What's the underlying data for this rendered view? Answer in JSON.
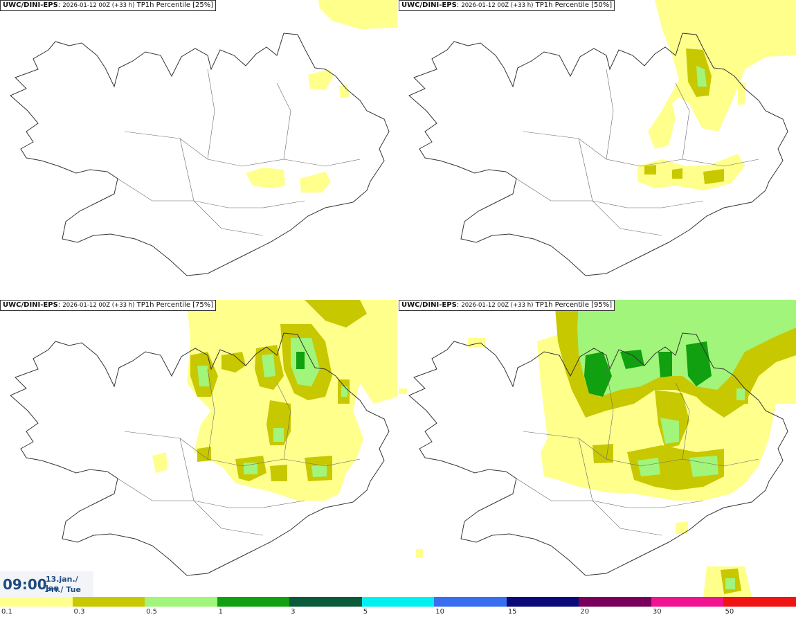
{
  "panels": [
    {
      "model": "UWC/DINI-EPS",
      "run": "2026-01-12 00Z (+33 h)",
      "field": "TP1h Percentile [25%]"
    },
    {
      "model": "UWC/DINI-EPS",
      "run": "2026-01-12 00Z (+33 h)",
      "field": "TP1h Percentile [50%]"
    },
    {
      "model": "UWC/DINI-EPS",
      "run": "2026-01-12 00Z (+33 h)",
      "field": "TP1h Percentile [75%]"
    },
    {
      "model": "UWC/DINI-EPS",
      "run": "2026-01-12 00Z (+33 h)",
      "field": "TP1h Percentile [95%]"
    }
  ],
  "valid_time": {
    "time": "09:00",
    "date_line1": "13.jan./ Jan",
    "date_line2": "Þri./ Tue"
  },
  "legend": {
    "colors": [
      "#ffff8c",
      "#c8c800",
      "#a0f57a",
      "#10a010",
      "#0a5a3a",
      "#00f0f0",
      "#3a6ef0",
      "#0a0a78",
      "#78005a",
      "#f01490",
      "#f01414"
    ],
    "ticks": [
      "0.1",
      "0.3",
      "0.5",
      "1",
      "3",
      "5",
      "10",
      "15",
      "20",
      "30",
      "50"
    ]
  }
}
